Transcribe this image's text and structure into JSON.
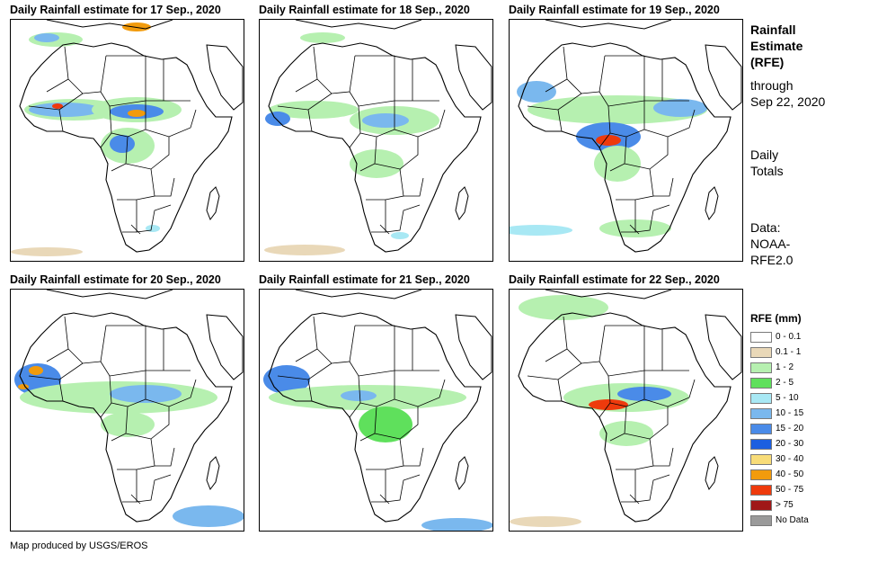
{
  "panels": [
    {
      "title": "Daily Rainfall estimate for 17 Sep., 2020"
    },
    {
      "title": "Daily Rainfall estimate for 18 Sep., 2020"
    },
    {
      "title": "Daily Rainfall estimate for 19 Sep., 2020"
    },
    {
      "title": "Daily Rainfall estimate for 20 Sep., 2020"
    },
    {
      "title": "Daily Rainfall estimate for 21 Sep., 2020"
    },
    {
      "title": "Daily Rainfall estimate for 22 Sep., 2020"
    }
  ],
  "sidebar": {
    "title_lines": [
      "Rainfall",
      "Estimate",
      "(RFE)"
    ],
    "through_lines": [
      "through",
      "Sep 22, 2020"
    ],
    "daily_lines": [
      "Daily",
      "Totals"
    ],
    "data_lines": [
      "Data:",
      "NOAA-",
      "RFE2.0"
    ]
  },
  "legend": {
    "title": "RFE (mm)",
    "items": [
      {
        "label": "0 - 0.1",
        "color": "#ffffff"
      },
      {
        "label": "0.1 - 1",
        "color": "#e9d8b8"
      },
      {
        "label": "1 - 2",
        "color": "#b6f0b0"
      },
      {
        "label": "2 - 5",
        "color": "#5fe05c"
      },
      {
        "label": "5 - 10",
        "color": "#a8e8f4"
      },
      {
        "label": "10 - 15",
        "color": "#7ab8ee"
      },
      {
        "label": "15 - 20",
        "color": "#4a8be8"
      },
      {
        "label": "20 - 30",
        "color": "#1c5fe0"
      },
      {
        "label": "30 - 40",
        "color": "#f8dc78"
      },
      {
        "label": "40 - 50",
        "color": "#f29b0c"
      },
      {
        "label": "50 - 75",
        "color": "#ee3a0c"
      },
      {
        "label": "> 75",
        "color": "#a01818"
      },
      {
        "label": "No Data",
        "color": "#9a9a9a"
      }
    ]
  },
  "credit": "Map produced by USGS/EROS"
}
